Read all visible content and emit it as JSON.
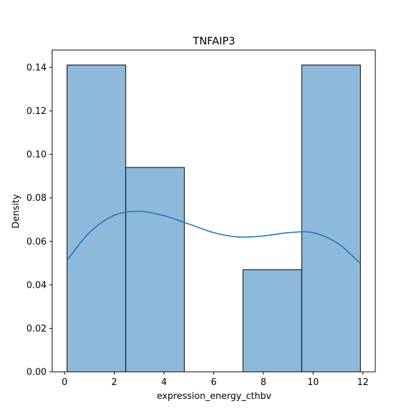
{
  "chart_data": {
    "type": "bar",
    "title": "TNFAIP3",
    "xlabel": "expression_energy_cthbv",
    "ylabel": "Density",
    "xlim": [
      -0.5,
      12.5
    ],
    "ylim": [
      0,
      0.148
    ],
    "xticks": [
      0,
      2,
      4,
      6,
      8,
      10,
      12
    ],
    "yticks": [
      0.0,
      0.02,
      0.04,
      0.06,
      0.08,
      0.1,
      0.12,
      0.14
    ],
    "ytick_labels": [
      "0.00",
      "0.02",
      "0.04",
      "0.06",
      "0.08",
      "0.10",
      "0.12",
      "0.14"
    ],
    "bins": [
      {
        "x0": 0.1,
        "x1": 2.46,
        "density": 0.1411
      },
      {
        "x0": 2.46,
        "x1": 4.82,
        "density": 0.094
      },
      {
        "x0": 4.82,
        "x1": 7.18,
        "density": 0.0
      },
      {
        "x0": 7.18,
        "x1": 9.54,
        "density": 0.047
      },
      {
        "x0": 9.54,
        "x1": 11.9,
        "density": 0.1411
      }
    ],
    "kde": {
      "x": [
        0.1,
        1.0,
        2.0,
        3.0,
        4.0,
        5.0,
        6.0,
        7.0,
        8.0,
        9.0,
        10.0,
        11.0,
        11.9
      ],
      "y": [
        0.0513,
        0.064,
        0.072,
        0.0738,
        0.0718,
        0.068,
        0.064,
        0.062,
        0.0625,
        0.064,
        0.064,
        0.059,
        0.0498
      ]
    },
    "grid": false,
    "colors": {
      "bar_fill": "#8db9db",
      "bar_edge": "#000000",
      "kde_line": "#1f77b4"
    }
  }
}
